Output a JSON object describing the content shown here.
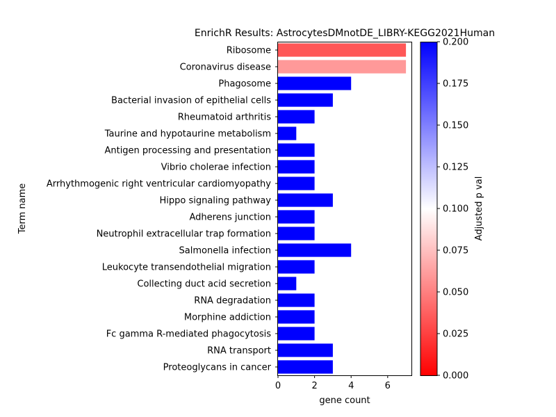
{
  "chart_data": {
    "type": "bar",
    "orientation": "horizontal",
    "title": "EnrichR Results: AstrocytesDMnotDE_LIBRY-KEGG2021Human",
    "xlabel": "gene count",
    "ylabel": "Term name",
    "xlim": [
      0,
      7.3
    ],
    "xticks": [
      "0",
      "2",
      "4",
      "6"
    ],
    "categories": [
      "Ribosome",
      "Coronavirus disease",
      "Phagosome",
      "Bacterial invasion of epithelial cells",
      "Rheumatoid arthritis",
      "Taurine and hypotaurine metabolism",
      "Antigen processing and presentation",
      "Vibrio cholerae infection",
      "Arrhythmogenic right ventricular cardiomyopathy",
      "Hippo signaling pathway",
      "Adherens junction",
      "Neutrophil extracellular trap formation",
      "Salmonella infection",
      "Leukocyte transendothelial migration",
      "Collecting duct acid secretion",
      "RNA degradation",
      "Morphine addiction",
      "Fc gamma R-mediated phagocytosis",
      "RNA transport",
      "Proteoglycans in cancer"
    ],
    "values": [
      7,
      7,
      4,
      3,
      2,
      1,
      2,
      2,
      2,
      3,
      2,
      2,
      4,
      2,
      1,
      2,
      2,
      2,
      3,
      3
    ],
    "adjusted_p_val": [
      0.034,
      0.06,
      0.2,
      0.2,
      0.2,
      0.2,
      0.2,
      0.2,
      0.2,
      0.2,
      0.2,
      0.2,
      0.2,
      0.2,
      0.2,
      0.2,
      0.2,
      0.2,
      0.2,
      0.2
    ],
    "colorbar": {
      "label": "Adjusted p val",
      "range": [
        0,
        0.2
      ],
      "ticks": [
        "0.000",
        "0.025",
        "0.050",
        "0.075",
        "0.100",
        "0.125",
        "0.150",
        "0.175",
        "0.200"
      ],
      "colors": [
        "#ff0000",
        "#ffffff",
        "#0000ff"
      ]
    },
    "grid": false,
    "legend": "none"
  }
}
